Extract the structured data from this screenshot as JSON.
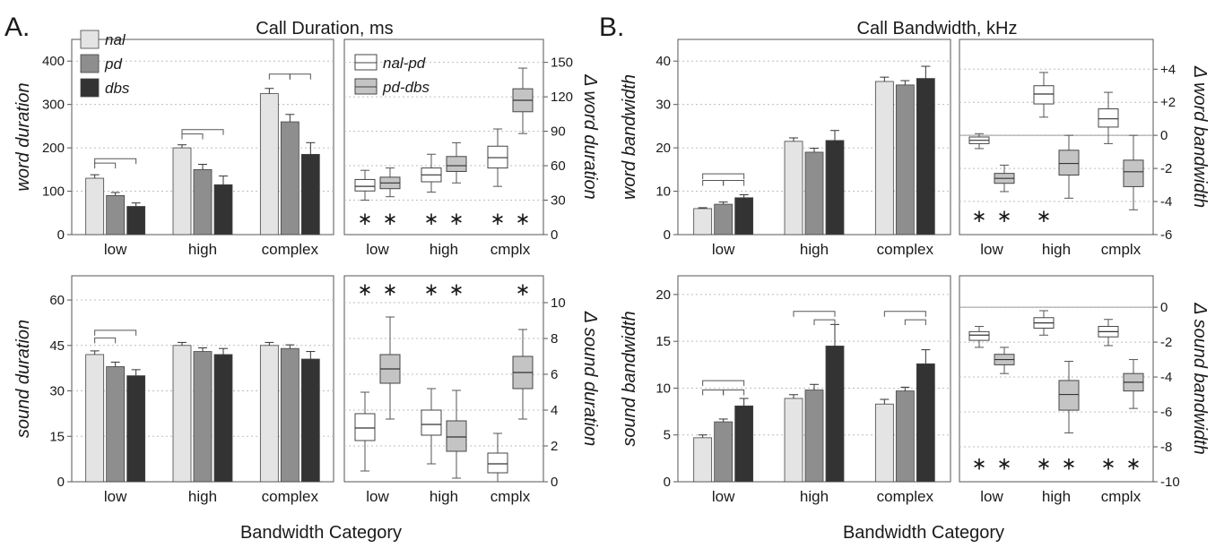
{
  "figure": {
    "panel_a_label": "A.",
    "panel_b_label": "B.",
    "title_a": "Call Duration, ms",
    "title_b": "Call Bandwidth, kHz",
    "xlabel": "Bandwidth Category"
  },
  "legends": {
    "bars": [
      "nal",
      "pd",
      "dbs"
    ],
    "boxes": [
      "nal-pd",
      "pd-dbs"
    ]
  },
  "colors": {
    "nal": "#e4e4e4",
    "pd": "#8e8e8e",
    "dbs": "#333333",
    "box_nal_pd": "#ffffff",
    "box_pd_dbs": "#c4c4c4"
  },
  "chart_data": [
    {
      "id": "word_duration",
      "type": "bar",
      "ylabel": "word duration",
      "categories": [
        "low",
        "high",
        "complex"
      ],
      "ylim": [
        0,
        450
      ],
      "yticks": [
        0,
        100,
        200,
        300,
        400
      ],
      "series": [
        {
          "name": "nal",
          "values": [
            130,
            200,
            325
          ],
          "err": [
            8,
            7,
            12
          ]
        },
        {
          "name": "pd",
          "values": [
            90,
            150,
            260
          ],
          "err": [
            7,
            12,
            17
          ]
        },
        {
          "name": "dbs",
          "values": [
            65,
            115,
            185
          ],
          "err": [
            8,
            20,
            27
          ]
        }
      ],
      "brackets": [
        {
          "cat": 0,
          "from": 0,
          "to": 1,
          "y": 165
        },
        {
          "cat": 0,
          "from": 0,
          "to": 2,
          "y": 175
        },
        {
          "cat": 1,
          "from": 0,
          "to": 1,
          "y": 232
        },
        {
          "cat": 1,
          "from": 0,
          "to": 2,
          "y": 242
        },
        {
          "cat": 2,
          "from": 0,
          "to": 1,
          "y": 370
        },
        {
          "cat": 2,
          "from": 1,
          "to": 2,
          "y": 370
        }
      ]
    },
    {
      "id": "delta_word_duration",
      "type": "box",
      "ylabel": "Δ word duration",
      "categories": [
        "low",
        "high",
        "cmplx"
      ],
      "ylim": [
        0,
        170
      ],
      "yticks": [
        0,
        30,
        60,
        90,
        120,
        150
      ],
      "significant": [
        true,
        true,
        true,
        true,
        true,
        true
      ],
      "star_y": 15,
      "series": [
        {
          "name": "nal-pd",
          "boxes": [
            {
              "min": 30,
              "q1": 38,
              "median": 42,
              "q3": 48,
              "max": 56
            },
            {
              "min": 37,
              "q1": 46,
              "median": 52,
              "q3": 58,
              "max": 70
            },
            {
              "min": 42,
              "q1": 58,
              "median": 67,
              "q3": 77,
              "max": 92
            }
          ]
        },
        {
          "name": "pd-dbs",
          "boxes": [
            {
              "min": 33,
              "q1": 40,
              "median": 45,
              "q3": 50,
              "max": 58
            },
            {
              "min": 45,
              "q1": 55,
              "median": 60,
              "q3": 68,
              "max": 80
            },
            {
              "min": 88,
              "q1": 107,
              "median": 117,
              "q3": 127,
              "max": 145
            }
          ]
        }
      ]
    },
    {
      "id": "sound_duration",
      "type": "bar",
      "ylabel": "sound duration",
      "categories": [
        "low",
        "high",
        "complex"
      ],
      "ylim": [
        0,
        68
      ],
      "yticks": [
        0,
        15,
        30,
        45,
        60
      ],
      "series": [
        {
          "name": "nal",
          "values": [
            42,
            45,
            45
          ],
          "err": [
            1.2,
            1.0,
            1.0
          ]
        },
        {
          "name": "pd",
          "values": [
            38,
            43,
            44
          ],
          "err": [
            1.5,
            1.2,
            1.2
          ]
        },
        {
          "name": "dbs",
          "values": [
            35,
            42,
            40.5
          ],
          "err": [
            2.0,
            2.0,
            2.5
          ]
        }
      ],
      "brackets": [
        {
          "cat": 0,
          "from": 0,
          "to": 1,
          "y": 47.5
        },
        {
          "cat": 0,
          "from": 0,
          "to": 2,
          "y": 50
        }
      ]
    },
    {
      "id": "delta_sound_duration",
      "type": "box",
      "ylabel": "Δ sound duration",
      "categories": [
        "low",
        "high",
        "cmplx"
      ],
      "ylim": [
        0,
        11.5
      ],
      "yticks": [
        0,
        2,
        4,
        6,
        8,
        10
      ],
      "significant": [
        true,
        true,
        true,
        true,
        false,
        true
      ],
      "star_y": 10.8,
      "series": [
        {
          "name": "nal-pd",
          "boxes": [
            {
              "min": 0.6,
              "q1": 2.3,
              "median": 3.0,
              "q3": 3.8,
              "max": 5.0
            },
            {
              "min": 1.0,
              "q1": 2.6,
              "median": 3.2,
              "q3": 4.0,
              "max": 5.2
            },
            {
              "min": 0.0,
              "q1": 0.5,
              "median": 1.0,
              "q3": 1.6,
              "max": 2.7
            }
          ]
        },
        {
          "name": "pd-dbs",
          "boxes": [
            {
              "min": 3.5,
              "q1": 5.5,
              "median": 6.3,
              "q3": 7.1,
              "max": 9.2
            },
            {
              "min": 0.2,
              "q1": 1.7,
              "median": 2.5,
              "q3": 3.4,
              "max": 5.1
            },
            {
              "min": 3.5,
              "q1": 5.2,
              "median": 6.1,
              "q3": 7.0,
              "max": 8.5
            }
          ]
        }
      ]
    },
    {
      "id": "word_bandwidth",
      "type": "bar",
      "ylabel": "word bandwidth",
      "categories": [
        "low",
        "high",
        "complex"
      ],
      "ylim": [
        0,
        45
      ],
      "yticks": [
        0,
        10,
        20,
        30,
        40
      ],
      "series": [
        {
          "name": "nal",
          "values": [
            6,
            21.5,
            35.3
          ],
          "err": [
            0.2,
            0.8,
            1.0
          ]
        },
        {
          "name": "pd",
          "values": [
            7,
            19,
            34.5
          ],
          "err": [
            0.5,
            0.9,
            1.0
          ]
        },
        {
          "name": "dbs",
          "values": [
            8.5,
            21.7,
            36
          ],
          "err": [
            0.7,
            2.3,
            2.8
          ]
        }
      ],
      "brackets": [
        {
          "cat": 0,
          "from": 0,
          "to": 1,
          "y": 12.5
        },
        {
          "cat": 0,
          "from": 1,
          "to": 2,
          "y": 12.5
        },
        {
          "cat": 0,
          "from": 0,
          "to": 2,
          "y": 14
        }
      ]
    },
    {
      "id": "delta_word_bandwidth",
      "type": "box",
      "ylabel": "Δ word bandwidth",
      "categories": [
        "low",
        "high",
        "cmplx"
      ],
      "ylim": [
        -6,
        5.8
      ],
      "yticks": [
        -6,
        -4,
        -2,
        0,
        2,
        4
      ],
      "ytick_labels": [
        "-6",
        "-4",
        "-2",
        "0",
        "+2",
        "+4"
      ],
      "zero_line": 0,
      "significant": [
        true,
        true,
        true,
        false,
        false,
        false
      ],
      "star_y": -4.8,
      "series": [
        {
          "name": "nal-pd",
          "boxes": [
            {
              "min": -0.8,
              "q1": -0.5,
              "median": -0.3,
              "q3": -0.1,
              "max": 0.1
            },
            {
              "min": 1.1,
              "q1": 1.9,
              "median": 2.5,
              "q3": 3.0,
              "max": 3.8
            },
            {
              "min": -0.5,
              "q1": 0.5,
              "median": 1.0,
              "q3": 1.6,
              "max": 2.6
            }
          ]
        },
        {
          "name": "pd-dbs",
          "boxes": [
            {
              "min": -3.4,
              "q1": -2.9,
              "median": -2.6,
              "q3": -2.3,
              "max": -1.8
            },
            {
              "min": -3.8,
              "q1": -2.4,
              "median": -1.7,
              "q3": -0.9,
              "max": 0.0
            },
            {
              "min": -4.5,
              "q1": -3.1,
              "median": -2.2,
              "q3": -1.5,
              "max": 0.0
            }
          ]
        }
      ]
    },
    {
      "id": "sound_bandwidth",
      "type": "bar",
      "ylabel": "sound bandwidth",
      "categories": [
        "low",
        "high",
        "complex"
      ],
      "ylim": [
        0,
        22
      ],
      "yticks": [
        0,
        5,
        10,
        15,
        20
      ],
      "series": [
        {
          "name": "nal",
          "values": [
            4.7,
            8.9,
            8.3
          ],
          "err": [
            0.3,
            0.4,
            0.5
          ]
        },
        {
          "name": "pd",
          "values": [
            6.4,
            9.8,
            9.7
          ],
          "err": [
            0.3,
            0.6,
            0.4
          ]
        },
        {
          "name": "dbs",
          "values": [
            8.1,
            14.5,
            12.6
          ],
          "err": [
            0.8,
            2.3,
            1.5
          ]
        }
      ],
      "brackets": [
        {
          "cat": 0,
          "from": 0,
          "to": 1,
          "y": 9.8
        },
        {
          "cat": 0,
          "from": 1,
          "to": 2,
          "y": 9.8
        },
        {
          "cat": 0,
          "from": 0,
          "to": 2,
          "y": 10.8
        },
        {
          "cat": 1,
          "from": 1,
          "to": 2,
          "y": 17.3
        },
        {
          "cat": 1,
          "from": 0,
          "to": 2,
          "y": 18.2
        },
        {
          "cat": 2,
          "from": 1,
          "to": 2,
          "y": 17.3
        },
        {
          "cat": 2,
          "from": 0,
          "to": 2,
          "y": 18.2
        }
      ]
    },
    {
      "id": "delta_sound_bandwidth",
      "type": "box",
      "ylabel": "Δ sound bandwidth",
      "categories": [
        "low",
        "high",
        "cmplx"
      ],
      "ylim": [
        -10,
        1.8
      ],
      "yticks": [
        -10,
        -8,
        -6,
        -4,
        -2,
        0
      ],
      "zero_line": 0,
      "significant": [
        true,
        true,
        true,
        true,
        true,
        true
      ],
      "star_y": -8.9,
      "series": [
        {
          "name": "nal-pd",
          "boxes": [
            {
              "min": -2.3,
              "q1": -1.9,
              "median": -1.6,
              "q3": -1.4,
              "max": -1.1
            },
            {
              "min": -1.6,
              "q1": -1.2,
              "median": -0.9,
              "q3": -0.6,
              "max": -0.2
            },
            {
              "min": -2.2,
              "q1": -1.7,
              "median": -1.4,
              "q3": -1.1,
              "max": -0.7
            }
          ]
        },
        {
          "name": "pd-dbs",
          "boxes": [
            {
              "min": -3.8,
              "q1": -3.3,
              "median": -3.0,
              "q3": -2.7,
              "max": -2.3
            },
            {
              "min": -7.2,
              "q1": -5.9,
              "median": -5.0,
              "q3": -4.2,
              "max": -3.1
            },
            {
              "min": -5.8,
              "q1": -4.8,
              "median": -4.3,
              "q3": -3.8,
              "max": -3.0
            }
          ]
        }
      ]
    }
  ]
}
